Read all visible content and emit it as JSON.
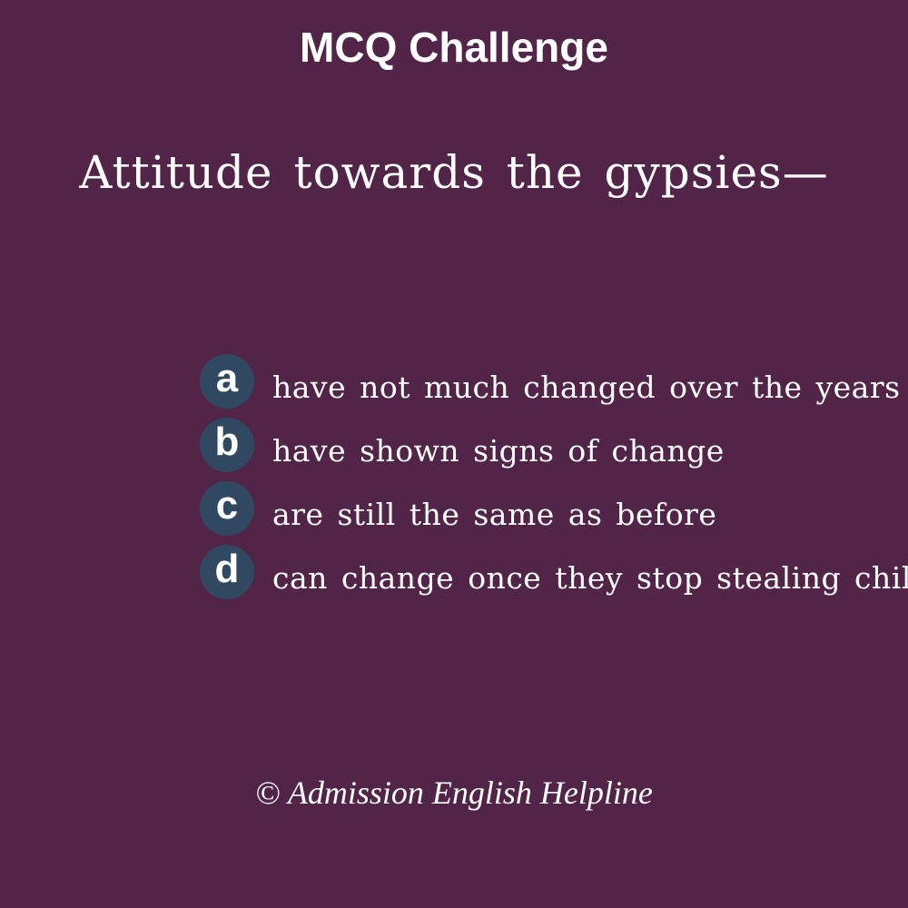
{
  "header": {
    "title": "MCQ Challenge"
  },
  "question": {
    "text": "Attitude towards the gypsies—"
  },
  "options": [
    {
      "letter": "a",
      "text": "have not much changed over the years"
    },
    {
      "letter": "b",
      "text": "have shown signs of change"
    },
    {
      "letter": "c",
      "text": "are still the same as before"
    },
    {
      "letter": "d",
      "text": "can change once they stop stealing child"
    }
  ],
  "footer": {
    "credit": "© Admission English Helpline"
  },
  "colors": {
    "background": "#522447",
    "badge": "#314960",
    "text": "#ffffff"
  }
}
